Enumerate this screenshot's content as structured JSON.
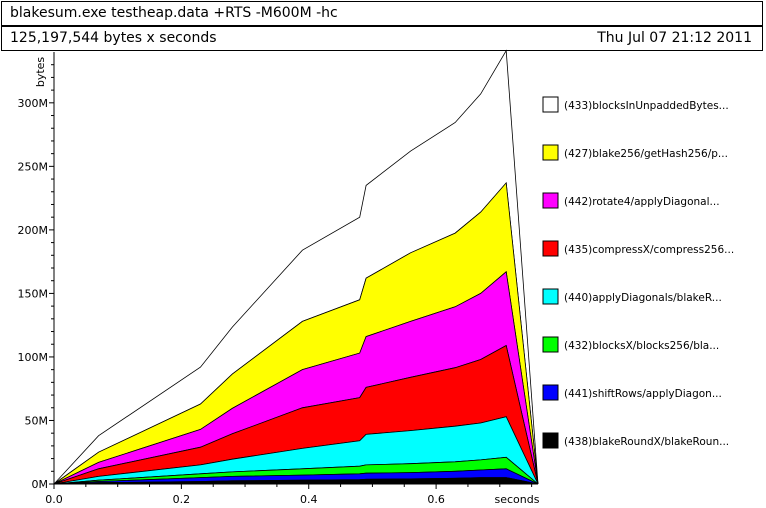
{
  "header": {
    "command": "blakesum.exe testheap.data +RTS -M600M -hc",
    "total": "125,197,544 bytes x seconds",
    "date": "Thu Jul 07 21:12 2011"
  },
  "chart_data": {
    "type": "area",
    "stacked": true,
    "xlabel": "seconds",
    "ylabel": "bytes",
    "xlim": [
      0,
      0.76
    ],
    "ylim": [
      0,
      340000000
    ],
    "x_ticks": [
      {
        "value": 0.0,
        "label": "0.0"
      },
      {
        "value": 0.2,
        "label": "0.2"
      },
      {
        "value": 0.4,
        "label": "0.4"
      },
      {
        "value": 0.6,
        "label": "0.6"
      }
    ],
    "y_ticks": [
      {
        "value": 0,
        "label": "0M"
      },
      {
        "value": 50000000,
        "label": "50M"
      },
      {
        "value": 100000000,
        "label": "100M"
      },
      {
        "value": 150000000,
        "label": "150M"
      },
      {
        "value": 200000000,
        "label": "200M"
      },
      {
        "value": 250000000,
        "label": "250M"
      },
      {
        "value": 300000000,
        "label": "300M"
      }
    ],
    "legend_placement": "right",
    "x": [
      0.0,
      0.07,
      0.23,
      0.28,
      0.39,
      0.48,
      0.49,
      0.56,
      0.63,
      0.67,
      0.71,
      0.76
    ],
    "series": [
      {
        "name": "(438)blakeRoundX/blakeRoun...",
        "color": "#000000",
        "values": [
          0,
          1000000,
          2000000,
          2500000,
          3000000,
          3500000,
          3700000,
          4000000,
          4500000,
          5000000,
          5000000,
          0
        ]
      },
      {
        "name": "(441)shiftRows/applyDiagon...",
        "color": "#0000ff",
        "values": [
          0,
          1000000,
          3000000,
          3500000,
          4000000,
          4500000,
          4800000,
          5000000,
          5500000,
          6000000,
          7000000,
          0
        ]
      },
      {
        "name": "(432)blocksX/blocks256/bla...",
        "color": "#00ff00",
        "values": [
          0,
          1000000,
          3000000,
          3500000,
          5000000,
          6000000,
          6500000,
          7000000,
          7500000,
          8000000,
          9000000,
          0
        ]
      },
      {
        "name": "(440)applyDiagonals/blakeR...",
        "color": "#00ffff",
        "values": [
          0,
          3000000,
          7000000,
          10000000,
          16000000,
          20000000,
          24000000,
          26000000,
          28000000,
          29000000,
          32000000,
          0
        ]
      },
      {
        "name": "(435)compressX/compress256...",
        "color": "#ff0000",
        "values": [
          0,
          6000000,
          14000000,
          20000000,
          32000000,
          34000000,
          37000000,
          42000000,
          46000000,
          50000000,
          56000000,
          0
        ]
      },
      {
        "name": "(442)rotate4/applyDiagonal...",
        "color": "#ff00ff",
        "values": [
          0,
          5000000,
          14000000,
          20000000,
          30000000,
          35000000,
          40000000,
          44000000,
          48000000,
          52000000,
          58000000,
          0
        ]
      },
      {
        "name": "(427)blake256/getHash256/p...",
        "color": "#ffff00",
        "values": [
          0,
          8000000,
          20000000,
          27000000,
          38000000,
          42000000,
          46000000,
          54000000,
          58000000,
          64000000,
          70000000,
          0
        ]
      },
      {
        "name": "(433)blocksInUnpaddedBytes...",
        "color": "#ffffff",
        "values": [
          0,
          13000000,
          29000000,
          37000000,
          56000000,
          65000000,
          73000000,
          80000000,
          87000000,
          93000000,
          104000000,
          0
        ]
      }
    ]
  }
}
